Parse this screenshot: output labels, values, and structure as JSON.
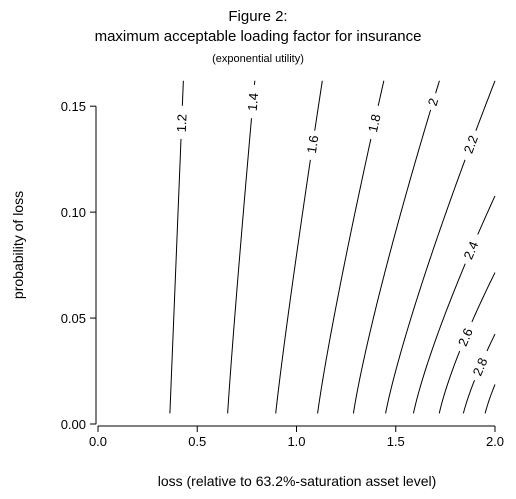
{
  "chart_data": {
    "type": "contour",
    "title": "Figure 2:",
    "subtitle": "maximum acceptable loading factor for insurance",
    "note": "(exponential utility)",
    "xlabel": "loss (relative to 63.2%-saturation asset level)",
    "ylabel": "probability of loss",
    "xlim": [
      0,
      2
    ],
    "ylim": [
      0,
      0.16
    ],
    "x_ticks": [
      "0.0",
      "0.5",
      "1.0",
      "1.5",
      "2.0"
    ],
    "y_ticks": [
      "0.00",
      "0.05",
      "0.10",
      "0.15"
    ],
    "grid": false,
    "legend": "none",
    "contours": [
      {
        "level": "1.2",
        "x_at_p0": 0.36,
        "x_at_pmax": 0.43,
        "curvature": 0.5
      },
      {
        "level": "1.4",
        "x_at_p0": 0.65,
        "x_at_pmax": 0.79,
        "curvature": 0.6
      },
      {
        "level": "1.6",
        "x_at_p0": 0.89,
        "x_at_pmax": 1.13,
        "curvature": 0.6
      },
      {
        "level": "1.8",
        "x_at_p0": 1.1,
        "x_at_pmax": 1.44,
        "curvature": 0.65
      },
      {
        "level": "2",
        "x_at_p0": 1.28,
        "x_at_pmax": 1.72,
        "curvature": 0.7
      },
      {
        "level": "2.2",
        "x_at_p0": 1.44,
        "x_at_pmax": 2.0,
        "curvature": 0.7
      },
      {
        "level": "2.4",
        "x_at_p0": 1.58,
        "x_at_pmax": 2.28,
        "curvature": 0.75
      },
      {
        "level": "2.6",
        "x_at_p0": 1.71,
        "x_at_pmax": 2.55,
        "curvature": 0.8
      },
      {
        "level": "2.8",
        "x_at_p0": 1.83,
        "x_at_pmax": 2.8,
        "curvature": 0.8
      },
      {
        "level": "",
        "x_at_p0": 1.94,
        "x_at_pmax": 3.05,
        "curvature": 0.85
      }
    ],
    "label_positions": [
      {
        "level": "1.2",
        "p": 0.142
      },
      {
        "level": "1.4",
        "p": 0.152
      },
      {
        "level": "1.6",
        "p": 0.132
      },
      {
        "level": "1.8",
        "p": 0.142
      },
      {
        "level": "2",
        "p": 0.152
      },
      {
        "level": "2.2",
        "p": 0.132
      },
      {
        "level": "2.4",
        "p": 0.082
      },
      {
        "level": "2.6",
        "p": 0.041
      },
      {
        "level": "2.8",
        "p": 0.027
      }
    ]
  }
}
